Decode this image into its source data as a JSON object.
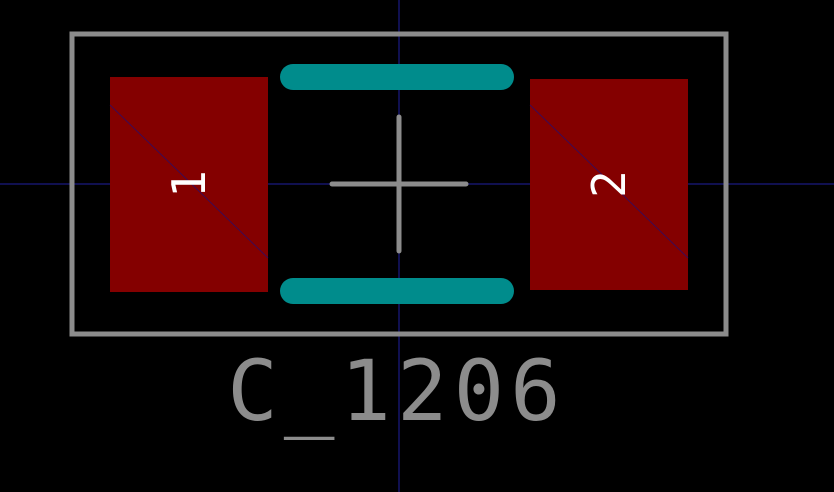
{
  "footprint": {
    "reference_text": "C_1206",
    "pads": [
      {
        "number": "1"
      },
      {
        "number": "2"
      }
    ]
  },
  "colors": {
    "background": "#000000",
    "courtyard_outline": "#8c8c8c",
    "pad_fill": "#840000",
    "pad_number_text": "#ffffff",
    "silkscreen": "#008c8c",
    "crosshair": "#8c8c8c",
    "grid_axis": "#2020a0",
    "reference_text": "#8c8c8c"
  }
}
